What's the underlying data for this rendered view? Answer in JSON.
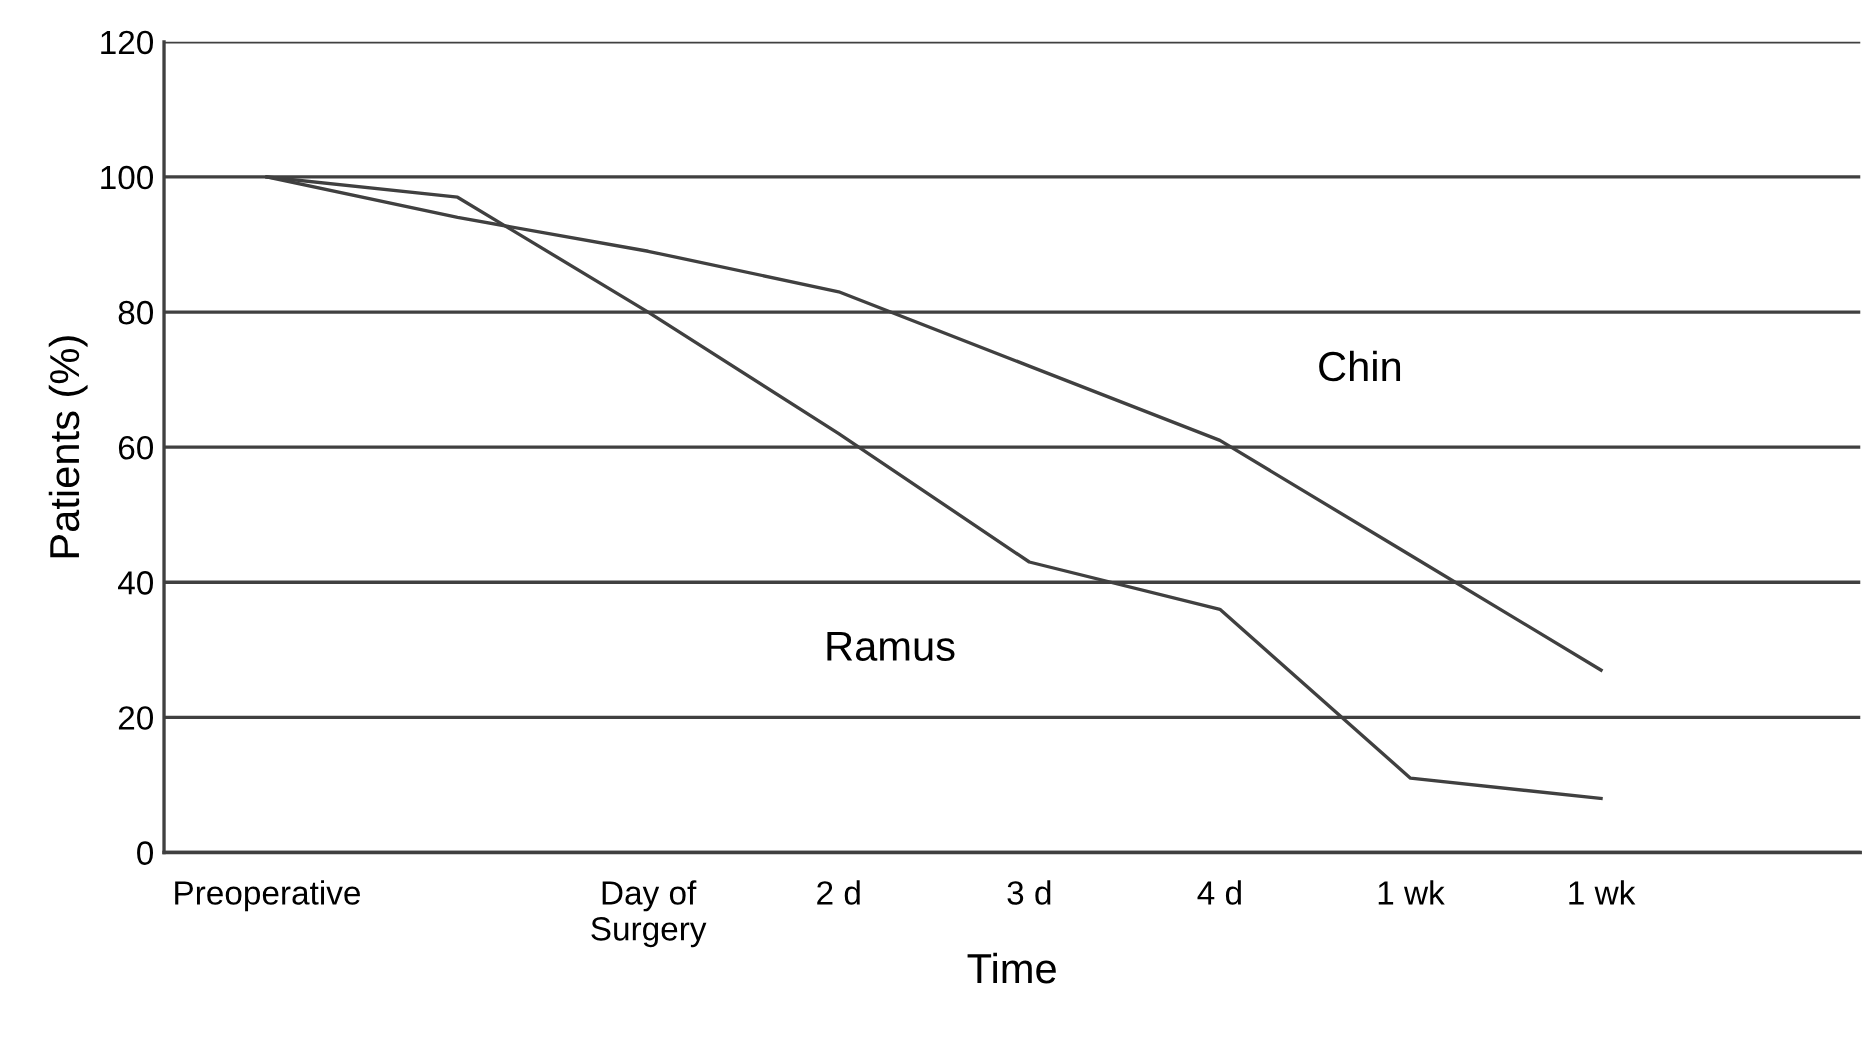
{
  "chart_data": {
    "type": "line",
    "xlabel": "Time",
    "ylabel": "Patients (%)",
    "categories": [
      "Preoperative",
      null,
      "Day of\nSurgery",
      "2 d",
      "3 d",
      "4 d",
      "1 wk",
      "1 wk"
    ],
    "series": [
      {
        "color": "#404040",
        "values": [
          100,
          97,
          80,
          62,
          43,
          36,
          11,
          8
        ]
      },
      {
        "color": "#404040",
        "values": [
          100,
          94,
          89,
          83,
          72,
          61,
          44,
          27
        ]
      }
    ],
    "annotations": [
      "Chin",
      "Ramus"
    ],
    "ylim": [
      0,
      120
    ],
    "yticks": [
      0,
      20,
      40,
      60,
      80,
      100,
      120
    ],
    "grid": "y",
    "legend": false,
    "marker": "none",
    "line_style": "solid"
  }
}
